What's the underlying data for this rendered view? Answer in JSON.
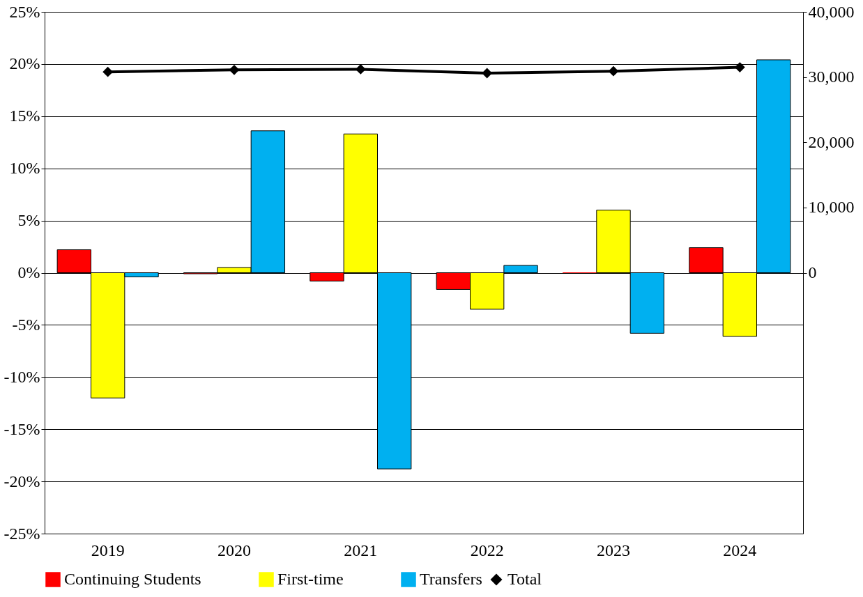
{
  "chart_data": {
    "type": "bar",
    "categories": [
      "2019",
      "2020",
      "2021",
      "2022",
      "2023",
      "2024"
    ],
    "series": [
      {
        "name": "Continuing Students",
        "color": "#ff0000",
        "values": [
          2.2,
          -0.1,
          -0.8,
          -1.6,
          0.0,
          2.4
        ]
      },
      {
        "name": "First-time",
        "color": "#ffff00",
        "values": [
          -12.0,
          0.5,
          13.3,
          -3.5,
          6.0,
          -6.1
        ]
      },
      {
        "name": "Transfers",
        "color": "#00b0f0",
        "values": [
          -0.4,
          13.6,
          -18.8,
          0.7,
          -5.8,
          20.4
        ]
      },
      {
        "name": "Total",
        "type": "line",
        "axis": "y2",
        "color": "#000000",
        "marker": "diamond",
        "values": [
          30800,
          31100,
          31200,
          30600,
          30900,
          31500
        ]
      }
    ],
    "ylim": [
      -25,
      25
    ],
    "yticks": [
      {
        "value": -25,
        "label": "-25%"
      },
      {
        "value": -20,
        "label": "-20%"
      },
      {
        "value": -15,
        "label": "-15%"
      },
      {
        "value": -10,
        "label": "-10%"
      },
      {
        "value": -5,
        "label": "-5%"
      },
      {
        "value": 0,
        "label": "0%"
      },
      {
        "value": 5,
        "label": "5%"
      },
      {
        "value": 10,
        "label": "10%"
      },
      {
        "value": 15,
        "label": "15%"
      },
      {
        "value": 20,
        "label": "20%"
      },
      {
        "value": 25,
        "label": "25%"
      }
    ],
    "y2lim": [
      -40000,
      40000
    ],
    "y2ticks": [
      0,
      {
        "value": 10000,
        "label": "10,000"
      },
      {
        "value": 20000,
        "label": "20,000"
      },
      {
        "value": 30000,
        "label": "30,000"
      },
      {
        "value": 40000,
        "label": "40,000"
      }
    ],
    "grid": "y",
    "legend": "bottom"
  }
}
